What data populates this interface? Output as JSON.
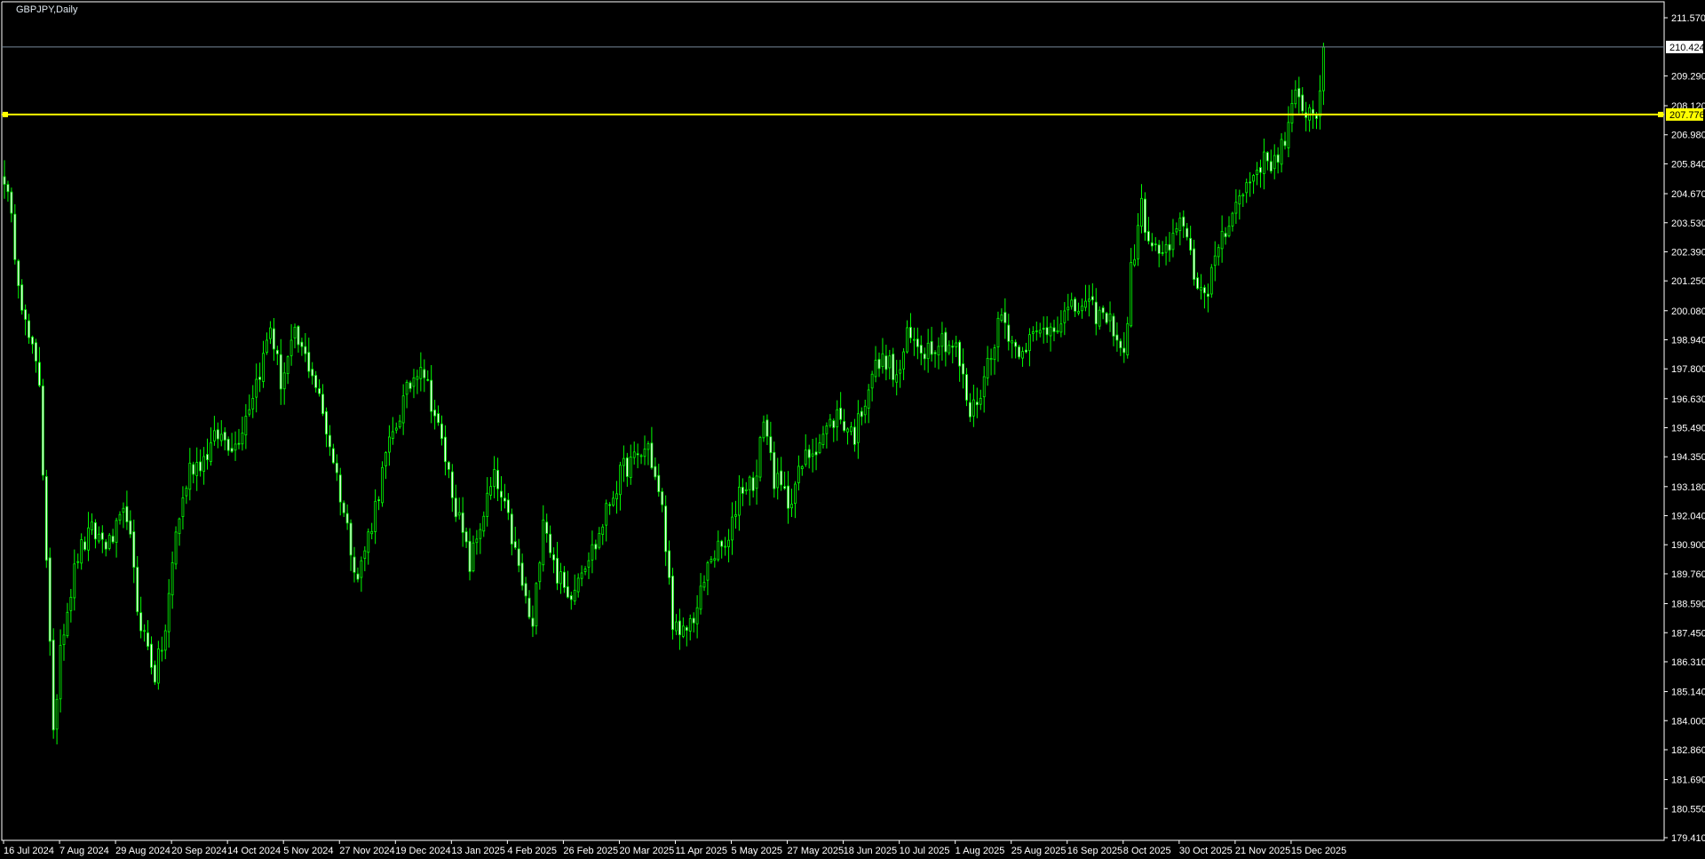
{
  "window": {
    "title": "GBPJPY,Daily"
  },
  "colors": {
    "background": "#000000",
    "axis": "#ffffff",
    "bull": "#00ff00",
    "bear_body": "#ffffff",
    "bid_line": "#778899",
    "hline": "#ffff00"
  },
  "chart_data": {
    "type": "candlestick",
    "title": "GBPJPY,Daily",
    "symbol": "GBPJPY",
    "timeframe": "Daily",
    "ylim": [
      179.41,
      211.57
    ],
    "grid": false,
    "current_price": "210.424",
    "horizontal_line": "207.776",
    "price_labels": [
      "211.570",
      "209.290",
      "208.120",
      "206.980",
      "205.840",
      "204.670",
      "203.530",
      "202.390",
      "201.250",
      "200.080",
      "198.940",
      "197.800",
      "196.630",
      "195.490",
      "194.350",
      "193.180",
      "192.040",
      "190.900",
      "189.760",
      "188.590",
      "187.450",
      "186.310",
      "185.140",
      "184.000",
      "182.860",
      "181.690",
      "180.550",
      "179.410"
    ],
    "date_labels": [
      "16 Jul 2024",
      "7 Aug 2024",
      "29 Aug 2024",
      "20 Sep 2024",
      "14 Oct 2024",
      "5 Nov 2024",
      "27 Nov 2024",
      "19 Dec 2024",
      "13 Jan 2025",
      "4 Feb 2025",
      "26 Feb 2025",
      "20 Mar 2025",
      "11 Apr 2025",
      "5 May 2025",
      "27 May 2025",
      "18 Jun 2025",
      "10 Jul 2025",
      "1 Aug 2025",
      "25 Aug 2025",
      "16 Sep 2025",
      "8 Oct 2025",
      "30 Oct 2025",
      "21 Nov 2025",
      "15 Dec 2025"
    ],
    "bars_per_date_label": 16,
    "close_anchors_by_bar": [
      [
        0,
        205.4
      ],
      [
        2,
        203.5
      ],
      [
        6,
        199.5
      ],
      [
        10,
        197.3
      ],
      [
        12,
        190.5
      ],
      [
        14,
        183.2
      ],
      [
        16,
        187.1
      ],
      [
        21,
        190.5
      ],
      [
        25,
        191.4
      ],
      [
        30,
        190.9
      ],
      [
        35,
        192.2
      ],
      [
        38,
        188.4
      ],
      [
        43,
        185.8
      ],
      [
        46,
        187.5
      ],
      [
        49,
        191.4
      ],
      [
        53,
        193.9
      ],
      [
        57,
        194.3
      ],
      [
        61,
        195.2
      ],
      [
        66,
        194.8
      ],
      [
        69,
        196.0
      ],
      [
        74,
        198.2
      ],
      [
        76,
        199.5
      ],
      [
        79,
        197.3
      ],
      [
        83,
        199.0
      ],
      [
        88,
        197.7
      ],
      [
        91,
        196.0
      ],
      [
        94,
        194.3
      ],
      [
        97,
        192.2
      ],
      [
        101,
        189.6
      ],
      [
        105,
        191.8
      ],
      [
        109,
        194.3
      ],
      [
        114,
        196.5
      ],
      [
        119,
        198.2
      ],
      [
        123,
        196.0
      ],
      [
        126,
        194.3
      ],
      [
        130,
        191.8
      ],
      [
        133,
        190.1
      ],
      [
        137,
        192.2
      ],
      [
        140,
        193.5
      ],
      [
        144,
        191.8
      ],
      [
        148,
        189.3
      ],
      [
        151,
        187.5
      ],
      [
        154,
        192.2
      ],
      [
        157,
        190.1
      ],
      [
        161,
        188.8
      ],
      [
        165,
        190.1
      ],
      [
        169,
        190.9
      ],
      [
        173,
        192.6
      ],
      [
        177,
        193.9
      ],
      [
        181,
        194.3
      ],
      [
        184,
        194.8
      ],
      [
        188,
        192.2
      ],
      [
        191,
        188.0
      ],
      [
        193,
        187.1
      ],
      [
        198,
        188.4
      ],
      [
        202,
        190.5
      ],
      [
        207,
        190.9
      ],
      [
        210,
        193.1
      ],
      [
        215,
        193.5
      ],
      [
        217,
        196.0
      ],
      [
        220,
        193.5
      ],
      [
        224,
        192.6
      ],
      [
        229,
        194.3
      ],
      [
        234,
        195.2
      ],
      [
        238,
        196.0
      ],
      [
        243,
        195.2
      ],
      [
        248,
        197.7
      ],
      [
        252,
        198.2
      ],
      [
        255,
        197.3
      ],
      [
        258,
        199.0
      ],
      [
        263,
        198.6
      ],
      [
        268,
        199.0
      ],
      [
        272,
        198.6
      ],
      [
        276,
        196.0
      ],
      [
        279,
        196.9
      ],
      [
        282,
        198.6
      ],
      [
        285,
        199.9
      ],
      [
        289,
        198.6
      ],
      [
        294,
        199.0
      ],
      [
        299,
        199.5
      ],
      [
        303,
        199.9
      ],
      [
        308,
        200.3
      ],
      [
        313,
        199.9
      ],
      [
        317,
        199.5
      ],
      [
        320,
        198.2
      ],
      [
        322,
        201.6
      ],
      [
        325,
        204.1
      ],
      [
        328,
        202.4
      ],
      [
        333,
        202.4
      ],
      [
        337,
        203.7
      ],
      [
        340,
        201.6
      ],
      [
        344,
        200.3
      ],
      [
        346,
        202.4
      ],
      [
        350,
        203.7
      ],
      [
        355,
        205.0
      ],
      [
        359,
        205.9
      ],
      [
        362,
        205.9
      ],
      [
        366,
        206.7
      ],
      [
        369,
        208.4
      ],
      [
        372,
        208.0
      ],
      [
        375,
        207.8
      ],
      [
        377,
        210.3
      ]
    ]
  }
}
